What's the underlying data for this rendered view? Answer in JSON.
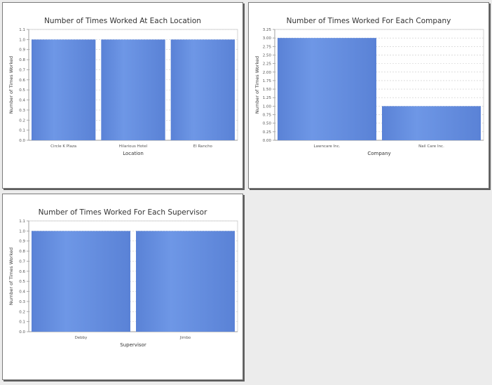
{
  "colors": {
    "bar_top": "#6e97e6",
    "bar_side": "#5a82d6",
    "grid": "#c8c8c8",
    "plot_bg": "#ffffff",
    "axis": "#999999",
    "text": "#333333"
  },
  "chart_data": [
    {
      "type": "bar",
      "title": "Number of Times Worked At Each Location",
      "xlabel": "Location",
      "ylabel": "Number of Times Worked",
      "categories": [
        "Circle K Plaza",
        "Hilarious Hotel",
        "El Rancho"
      ],
      "values": [
        1.0,
        1.0,
        1.0
      ],
      "ylim": [
        0,
        1.1
      ],
      "yticks": [
        "0.0",
        "0.1",
        "0.2",
        "0.3",
        "0.4",
        "0.5",
        "0.6",
        "0.7",
        "0.8",
        "0.9",
        "1.0",
        "1.1"
      ],
      "grid": true
    },
    {
      "type": "bar",
      "title": "Number of Times Worked For Each Company",
      "xlabel": "Company",
      "ylabel": "Number of Times Worked",
      "categories": [
        "Lawncare Inc.",
        "Nail Care Inc."
      ],
      "values": [
        3.0,
        1.0
      ],
      "ylim": [
        0,
        3.25
      ],
      "yticks": [
        "0.00",
        "0.25",
        "0.50",
        "0.75",
        "1.00",
        "1.25",
        "1.50",
        "1.75",
        "2.00",
        "2.25",
        "2.50",
        "2.75",
        "3.00",
        "3.25"
      ],
      "grid": true
    },
    {
      "type": "bar",
      "title": "Number of Times Worked For Each Supervisor",
      "xlabel": "Supervisor",
      "ylabel": "Number of Times Worked",
      "categories": [
        "Debby",
        "Jimbo"
      ],
      "values": [
        1.0,
        1.0
      ],
      "ylim": [
        0,
        1.1
      ],
      "yticks": [
        "0.0",
        "0.1",
        "0.2",
        "0.3",
        "0.4",
        "0.5",
        "0.6",
        "0.7",
        "0.8",
        "0.9",
        "1.0",
        "1.1"
      ],
      "grid": true
    }
  ]
}
